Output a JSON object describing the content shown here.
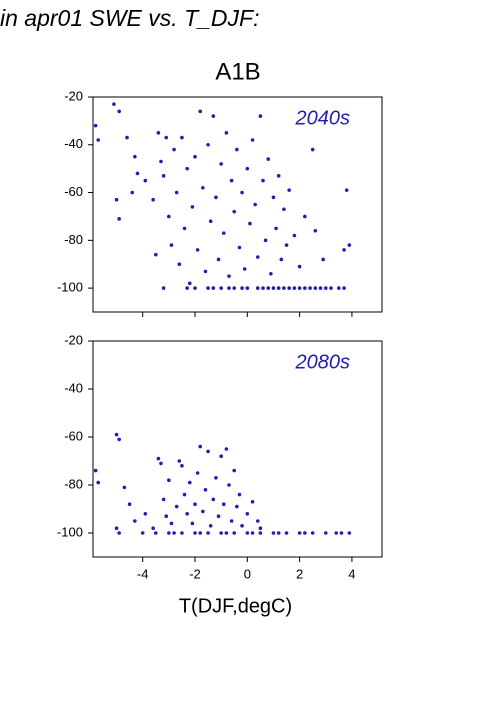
{
  "page": {
    "title": "in apr01 SWE vs. T_DJF:",
    "subtitle": "A1B"
  },
  "chart_data": [
    {
      "type": "scatter",
      "annotation": "2040s",
      "color": "#2020b0",
      "annotation_color": "#2020b0",
      "xlim": [
        -5.9,
        5.15
      ],
      "ylim": [
        -110,
        -20
      ],
      "xticks": [
        -4,
        -2,
        0,
        2,
        4
      ],
      "yticks": [
        -20,
        -40,
        -60,
        -80,
        -100
      ],
      "show_xtick_labels": false,
      "x": [
        -5.8,
        -5.7,
        -5.1,
        -4.9,
        -4.6,
        -5,
        -4.9,
        -4.3,
        -4.2,
        -4.4,
        -3.9,
        -3.6,
        -3.5,
        -3.4,
        -3.3,
        -3.2,
        -3.1,
        -3.0,
        -2.9,
        -2.8,
        -2.7,
        -2.6,
        -2.5,
        -2.4,
        -2.3,
        -2.2,
        -2.1,
        -2.0,
        -1.9,
        -1.8,
        -1.7,
        -1.6,
        -1.5,
        -1.4,
        -1.3,
        -1.2,
        -1.1,
        -1.0,
        -0.9,
        -0.8,
        -0.7,
        -0.6,
        -0.5,
        -0.4,
        -0.3,
        -0.2,
        -0.1,
        0.0,
        0.1,
        0.2,
        0.3,
        0.4,
        0.5,
        0.6,
        0.7,
        0.8,
        0.9,
        1.0,
        1.1,
        1.2,
        1.3,
        1.4,
        1.5,
        1.6,
        1.8,
        2.0,
        2.2,
        2.5,
        2.6,
        2.9,
        3.8,
        3.7,
        3.9,
        -3.2,
        -2.3,
        -1.5,
        -1.0,
        -0.5,
        0,
        0.4,
        0.8,
        1.2,
        1.6,
        2.0,
        2.4,
        2.8,
        3.2,
        3.5,
        3.7,
        -2.0,
        -1.3,
        -0.7,
        -0.2,
        0.6,
        1.0,
        1.4,
        1.8,
        2.2,
        2.6,
        3.0
      ],
      "y": [
        -32,
        -38,
        -23,
        -26,
        -37,
        -63,
        -71,
        -45,
        -52,
        -60,
        -55,
        -63,
        -86,
        -35,
        -47,
        -53,
        -37,
        -70,
        -82,
        -42,
        -60,
        -90,
        -37,
        -75,
        -50,
        -98,
        -66,
        -45,
        -84,
        -26,
        -58,
        -93,
        -40,
        -72,
        -28,
        -62,
        -88,
        -48,
        -77,
        -35,
        -95,
        -55,
        -68,
        -42,
        -83,
        -60,
        -92,
        -50,
        -73,
        -38,
        -65,
        -87,
        -28,
        -55,
        -80,
        -46,
        -94,
        -62,
        -75,
        -53,
        -88,
        -67,
        -82,
        -59,
        -78,
        -91,
        -70,
        -42,
        -76,
        -88,
        -59,
        -84,
        -82,
        -100,
        -100,
        -100,
        -100,
        -100,
        -100,
        -100,
        -100,
        -100,
        -100,
        -100,
        -100,
        -100,
        -100,
        -100,
        -100,
        -100,
        -100,
        -100,
        -100,
        -100,
        -100,
        -100,
        -100,
        -100,
        -100,
        -100
      ]
    },
    {
      "type": "scatter",
      "annotation": "2080s",
      "xlabel": "T(DJF,degC)",
      "color": "#2020b0",
      "annotation_color": "#2020b0",
      "xlim": [
        -5.9,
        5.15
      ],
      "ylim": [
        -110,
        -20
      ],
      "xticks": [
        -4,
        -2,
        0,
        2,
        4
      ],
      "yticks": [
        -20,
        -40,
        -60,
        -80,
        -100
      ],
      "show_xtick_labels": true,
      "x": [
        -5.8,
        -5.7,
        -5,
        -4.9,
        -4.7,
        -5,
        -4.9,
        -4.5,
        -4.3,
        -3.9,
        -3.6,
        -3.4,
        -3.3,
        -3.2,
        -3.1,
        -3,
        -2.9,
        -2.7,
        -2.6,
        -2.5,
        -2.4,
        -2.3,
        -2.2,
        -2.1,
        -2.0,
        -1.9,
        -1.8,
        -1.7,
        -1.6,
        -1.5,
        -1.4,
        -1.3,
        -1.2,
        -1.1,
        -1.0,
        -0.9,
        -0.8,
        -0.7,
        -0.6,
        -0.5,
        -0.4,
        -0.3,
        -0.2,
        0.0,
        0.2,
        0.4,
        0.5,
        -4,
        -3.5,
        -3,
        -2.5,
        -2,
        -1.5,
        -1,
        -0.5,
        0,
        0.5,
        1,
        1.5,
        2,
        2.5,
        3,
        3.4,
        3.6,
        3.9,
        -2.8,
        -1.8,
        -0.8,
        0.2,
        1.2,
        2.2
      ],
      "y": [
        -74,
        -79,
        -59,
        -61,
        -81,
        -98,
        -100,
        -88,
        -95,
        -92,
        -98,
        -69,
        -71,
        -86,
        -93,
        -78,
        -96,
        -89,
        -70,
        -72,
        -84,
        -92,
        -79,
        -96,
        -88,
        -75,
        -64,
        -91,
        -82,
        -66,
        -97,
        -86,
        -77,
        -93,
        -68,
        -88,
        -65,
        -80,
        -95,
        -74,
        -89,
        -84,
        -97,
        -92,
        -87,
        -95,
        -98,
        -100,
        -100,
        -100,
        -100,
        -100,
        -100,
        -100,
        -100,
        -100,
        -100,
        -100,
        -100,
        -100,
        -100,
        -100,
        -100,
        -100,
        -100,
        -100,
        -100,
        -100,
        -100,
        -100,
        -100
      ]
    }
  ]
}
